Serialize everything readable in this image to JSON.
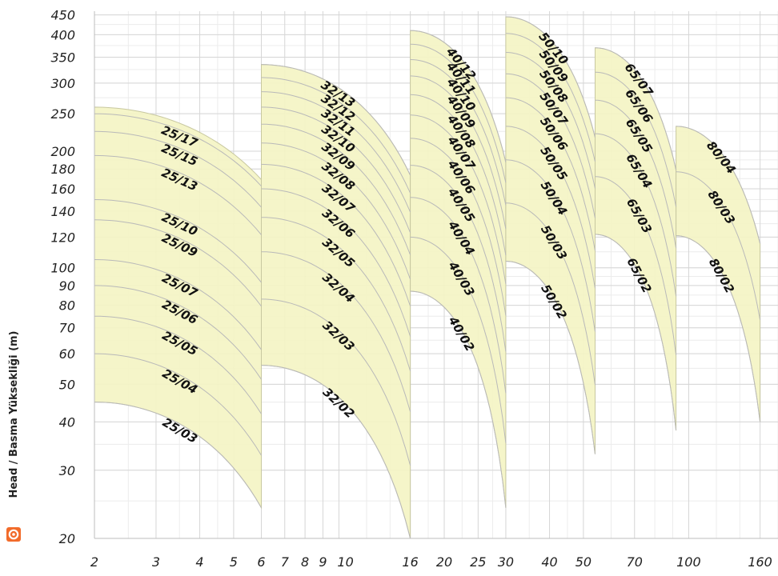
{
  "chart_data": {
    "type": "area",
    "title": "",
    "xlabel": "",
    "ylabel": "Head / Basma Yüksekliği (m)",
    "x_scale": "log",
    "y_scale": "log",
    "xlim": [
      2,
      180
    ],
    "ylim": [
      20,
      460
    ],
    "grid": true,
    "x_ticks": [
      "2",
      "3",
      "4",
      "5",
      "6",
      "7",
      "8",
      "9",
      "10",
      "16",
      "20",
      "25",
      "30",
      "40",
      "50",
      "70",
      "100",
      "160"
    ],
    "x_tick_values": [
      2,
      3,
      4,
      5,
      6,
      7,
      8,
      9,
      10,
      16,
      20,
      25,
      30,
      40,
      50,
      70,
      100,
      160
    ],
    "y_ticks": [
      "20",
      "30",
      "40",
      "50",
      "60",
      "70",
      "80",
      "90",
      "100",
      "120",
      "140",
      "160",
      "180",
      "200",
      "250",
      "300",
      "350",
      "400",
      "450"
    ],
    "y_tick_values": [
      20,
      30,
      40,
      50,
      60,
      70,
      80,
      90,
      100,
      120,
      140,
      160,
      180,
      200,
      250,
      300,
      350,
      400,
      450
    ],
    "fill_color": "#f4f4c4",
    "families": [
      {
        "family": "25",
        "x_range": [
          2,
          6
        ],
        "max_head": 260,
        "min_head": 24,
        "curves": [
          {
            "label": "25/17",
            "head": 250
          },
          {
            "label": "25/15",
            "head": 225
          },
          {
            "label": "25/13",
            "head": 195
          },
          {
            "label": "25/10",
            "head": 150
          },
          {
            "label": "25/09",
            "head": 133
          },
          {
            "label": "25/07",
            "head": 105
          },
          {
            "label": "25/06",
            "head": 90
          },
          {
            "label": "25/05",
            "head": 75
          },
          {
            "label": "25/04",
            "head": 60
          },
          {
            "label": "25/03",
            "head": 45
          }
        ]
      },
      {
        "family": "32",
        "x_range": [
          6,
          16
        ],
        "max_head": 335,
        "min_head": 20,
        "curves": [
          {
            "label": "32/13",
            "head": 335
          },
          {
            "label": "32/12",
            "head": 310
          },
          {
            "label": "32/11",
            "head": 285
          },
          {
            "label": "32/10",
            "head": 260
          },
          {
            "label": "32/09",
            "head": 235
          },
          {
            "label": "32/08",
            "head": 210
          },
          {
            "label": "32/07",
            "head": 185
          },
          {
            "label": "32/06",
            "head": 160
          },
          {
            "label": "32/05",
            "head": 135
          },
          {
            "label": "32/04",
            "head": 110
          },
          {
            "label": "32/03",
            "head": 83
          },
          {
            "label": "32/02",
            "head": 56
          }
        ]
      },
      {
        "family": "40",
        "x_range": [
          16,
          30
        ],
        "max_head": 410,
        "min_head": 24,
        "curves": [
          {
            "label": "40/12",
            "head": 410
          },
          {
            "label": "40/11",
            "head": 378
          },
          {
            "label": "40/10",
            "head": 345
          },
          {
            "label": "40/09",
            "head": 313
          },
          {
            "label": "40/08",
            "head": 280
          },
          {
            "label": "40/07",
            "head": 248
          },
          {
            "label": "40/06",
            "head": 216
          },
          {
            "label": "40/05",
            "head": 184
          },
          {
            "label": "40/04",
            "head": 152
          },
          {
            "label": "40/03",
            "head": 120
          },
          {
            "label": "40/02",
            "head": 87
          }
        ]
      },
      {
        "family": "50",
        "x_range": [
          30,
          54
        ],
        "max_head": 445,
        "min_head": 33,
        "curves": [
          {
            "label": "50/10",
            "head": 445
          },
          {
            "label": "50/09",
            "head": 403
          },
          {
            "label": "50/08",
            "head": 360
          },
          {
            "label": "50/07",
            "head": 317
          },
          {
            "label": "50/06",
            "head": 275
          },
          {
            "label": "50/05",
            "head": 232
          },
          {
            "label": "50/04",
            "head": 190
          },
          {
            "label": "50/03",
            "head": 147
          },
          {
            "label": "50/02",
            "head": 104
          }
        ]
      },
      {
        "family": "65",
        "x_range": [
          54,
          92
        ],
        "max_head": 370,
        "min_head": 38,
        "curves": [
          {
            "label": "65/07",
            "head": 370
          },
          {
            "label": "65/06",
            "head": 320
          },
          {
            "label": "65/05",
            "head": 271
          },
          {
            "label": "65/04",
            "head": 222
          },
          {
            "label": "65/03",
            "head": 172
          },
          {
            "label": "65/02",
            "head": 122
          }
        ]
      },
      {
        "family": "80",
        "x_range": [
          92,
          160
        ],
        "max_head": 232,
        "min_head": 40,
        "curves": [
          {
            "label": "80/04",
            "head": 232
          },
          {
            "label": "80/03",
            "head": 177
          },
          {
            "label": "80/02",
            "head": 121
          }
        ]
      }
    ]
  },
  "brand": {
    "icon": "lifebuoy-icon",
    "color": "#f26b2a"
  }
}
